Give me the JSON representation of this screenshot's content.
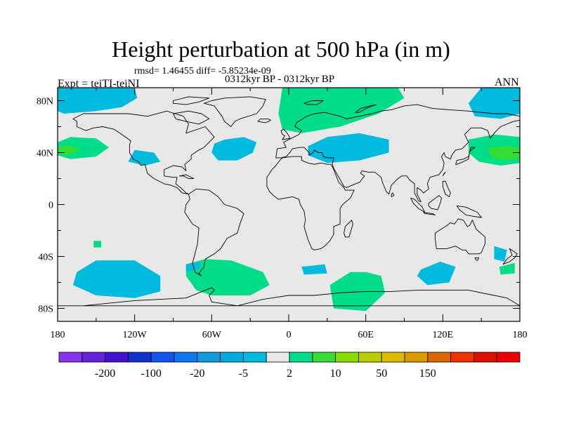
{
  "header": {
    "title": "Height perturbation at 500 hPa (in m)",
    "stats": "rmsd= 1.46455 diff= -5.85234e-09",
    "subtitle": "0312kyr BP - 0312kyr BP",
    "left_label": "Expt = teiTI-teiNI",
    "right_label": "ANN"
  },
  "map": {
    "projection": "cylindrical-equidistant",
    "lon_range": [
      -180,
      180
    ],
    "lat_range": [
      -90,
      90
    ],
    "background_color": "#e8e8e8",
    "lat_ticks": [
      {
        "lat": 80,
        "label": "80N"
      },
      {
        "lat": 40,
        "label": "40N"
      },
      {
        "lat": 0,
        "label": "0"
      },
      {
        "lat": -40,
        "label": "40S"
      },
      {
        "lat": -80,
        "label": "80S"
      }
    ],
    "lon_ticks": [
      {
        "lon": -180,
        "label": "180"
      },
      {
        "lon": -120,
        "label": "120W"
      },
      {
        "lon": -60,
        "label": "60W"
      },
      {
        "lon": 0,
        "label": "0"
      },
      {
        "lon": 60,
        "label": "60E"
      },
      {
        "lon": 120,
        "label": "120E"
      },
      {
        "lon": 180,
        "label": "180"
      }
    ],
    "anomaly_regions": [
      {
        "name": "arctic-pacific-negative",
        "color": "#00bbdd",
        "poly": [
          [
            -180,
            90
          ],
          [
            -120,
            90
          ],
          [
            -118,
            82
          ],
          [
            -130,
            75
          ],
          [
            -150,
            72
          ],
          [
            -175,
            70
          ],
          [
            -180,
            72
          ]
        ]
      },
      {
        "name": "north-atlantic-negative",
        "color": "#00bbdd",
        "poly": [
          [
            -50,
            50
          ],
          [
            -35,
            52
          ],
          [
            -25,
            48
          ],
          [
            -28,
            40
          ],
          [
            -40,
            34
          ],
          [
            -55,
            34
          ],
          [
            -60,
            40
          ],
          [
            -58,
            47
          ]
        ]
      },
      {
        "name": "north-america-negative",
        "color": "#00bbdd",
        "poly": [
          [
            -120,
            42
          ],
          [
            -105,
            40
          ],
          [
            -100,
            33
          ],
          [
            -112,
            30
          ],
          [
            -125,
            33
          ]
        ]
      },
      {
        "name": "north-pacific-positive-outer",
        "color": "#00dd88",
        "poly": [
          [
            -180,
            48
          ],
          [
            -170,
            52
          ],
          [
            -150,
            51
          ],
          [
            -140,
            44
          ],
          [
            -150,
            37
          ],
          [
            -170,
            35
          ],
          [
            -180,
            38
          ]
        ]
      },
      {
        "name": "north-pacific-positive-inner",
        "color": "#33dd33",
        "poly": [
          [
            -180,
            44
          ],
          [
            -172,
            46
          ],
          [
            -162,
            42
          ],
          [
            -172,
            38
          ],
          [
            -180,
            39
          ]
        ]
      },
      {
        "name": "eurasia-arctic-positive",
        "color": "#00dd88",
        "poly": [
          [
            -5,
            90
          ],
          [
            85,
            90
          ],
          [
            90,
            82
          ],
          [
            70,
            70
          ],
          [
            40,
            60
          ],
          [
            10,
            55
          ],
          [
            -5,
            58
          ],
          [
            -8,
            70
          ]
        ]
      },
      {
        "name": "mediterranean-negative",
        "color": "#00bbdd",
        "poly": [
          [
            15,
            45
          ],
          [
            30,
            52
          ],
          [
            55,
            55
          ],
          [
            78,
            50
          ],
          [
            78,
            40
          ],
          [
            55,
            34
          ],
          [
            30,
            32
          ],
          [
            15,
            38
          ]
        ]
      },
      {
        "name": "arctic-east-negative",
        "color": "#00bbdd",
        "poly": [
          [
            150,
            90
          ],
          [
            180,
            90
          ],
          [
            180,
            70
          ],
          [
            165,
            66
          ],
          [
            145,
            68
          ],
          [
            140,
            78
          ]
        ]
      },
      {
        "name": "japan-positive-outer",
        "color": "#00dd88",
        "poly": [
          [
            140,
            50
          ],
          [
            160,
            54
          ],
          [
            180,
            52
          ],
          [
            180,
            32
          ],
          [
            165,
            30
          ],
          [
            148,
            33
          ],
          [
            140,
            40
          ]
        ]
      },
      {
        "name": "japan-positive-inner",
        "color": "#33dd33",
        "poly": [
          [
            155,
            44
          ],
          [
            170,
            45
          ],
          [
            180,
            44
          ],
          [
            180,
            36
          ],
          [
            170,
            34
          ],
          [
            158,
            36
          ]
        ]
      },
      {
        "name": "south-pacific-small-positive",
        "color": "#00dd88",
        "poly": [
          [
            -152,
            -28
          ],
          [
            -146,
            -28
          ],
          [
            -146,
            -33
          ],
          [
            -152,
            -33
          ]
        ]
      },
      {
        "name": "south-pacific-negative",
        "color": "#00bbdd",
        "poly": [
          [
            -165,
            -52
          ],
          [
            -150,
            -43
          ],
          [
            -120,
            -43
          ],
          [
            -100,
            -55
          ],
          [
            -100,
            -67
          ],
          [
            -120,
            -72
          ],
          [
            -150,
            -70
          ],
          [
            -168,
            -62
          ]
        ]
      },
      {
        "name": "south-atlantic-positive",
        "color": "#00dd88",
        "poly": [
          [
            -80,
            -46
          ],
          [
            -65,
            -42
          ],
          [
            -45,
            -43
          ],
          [
            -20,
            -52
          ],
          [
            -15,
            -62
          ],
          [
            -30,
            -70
          ],
          [
            -60,
            -70
          ],
          [
            -72,
            -66
          ],
          [
            -80,
            -55
          ]
        ]
      },
      {
        "name": "south-atlantic-small-negative",
        "color": "#00bbdd",
        "poly": [
          [
            -80,
            -46
          ],
          [
            -68,
            -44
          ],
          [
            -70,
            -50
          ],
          [
            -80,
            -52
          ]
        ]
      },
      {
        "name": "south-africa-small-negative",
        "color": "#00bbdd",
        "poly": [
          [
            10,
            -48
          ],
          [
            28,
            -46
          ],
          [
            30,
            -53
          ],
          [
            12,
            -54
          ]
        ]
      },
      {
        "name": "south-indian-positive",
        "color": "#00dd88",
        "poly": [
          [
            60,
            -52
          ],
          [
            72,
            -55
          ],
          [
            75,
            -68
          ],
          [
            60,
            -82
          ],
          [
            35,
            -80
          ],
          [
            32,
            -62
          ],
          [
            48,
            -52
          ]
        ]
      },
      {
        "name": "south-indian-negative",
        "color": "#00bbdd",
        "poly": [
          [
            103,
            -50
          ],
          [
            118,
            -44
          ],
          [
            130,
            -48
          ],
          [
            125,
            -60
          ],
          [
            108,
            -62
          ],
          [
            100,
            -55
          ]
        ]
      },
      {
        "name": "tasman-negative",
        "color": "#00bbdd",
        "poly": [
          [
            160,
            -32
          ],
          [
            170,
            -35
          ],
          [
            168,
            -44
          ],
          [
            160,
            -42
          ]
        ]
      },
      {
        "name": "tasman-small-positive",
        "color": "#00dd88",
        "poly": [
          [
            164,
            -48
          ],
          [
            176,
            -45
          ],
          [
            176,
            -53
          ],
          [
            165,
            -54
          ]
        ]
      }
    ]
  },
  "colorbar": {
    "colors": [
      "#8833ee",
      "#6622dd",
      "#4411cc",
      "#1133cc",
      "#1155ee",
      "#1177ee",
      "#1199dd",
      "#00aadd",
      "#00bbdd",
      "#e8e8e8",
      "#00dd88",
      "#33dd33",
      "#88dd00",
      "#bbcc00",
      "#ddbb00",
      "#dd9900",
      "#dd6600",
      "#ee3300",
      "#dd1100",
      "#ee0000"
    ],
    "labels": [
      {
        "index": 1,
        "text": "-200"
      },
      {
        "index": 3,
        "text": "-100"
      },
      {
        "index": 5,
        "text": "-20"
      },
      {
        "index": 7,
        "text": "-5"
      },
      {
        "index": 9,
        "text": "2"
      },
      {
        "index": 11,
        "text": "10"
      },
      {
        "index": 13,
        "text": "50"
      },
      {
        "index": 15,
        "text": "150"
      }
    ]
  }
}
